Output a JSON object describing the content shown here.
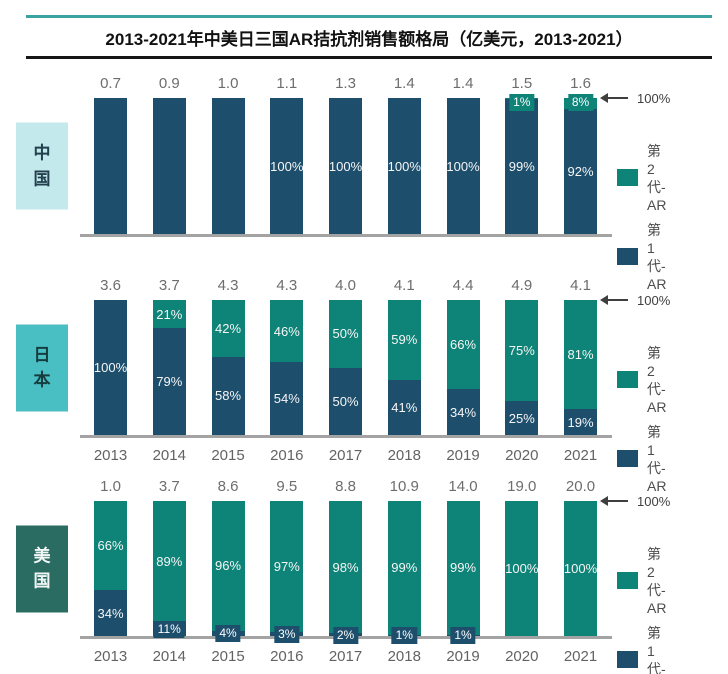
{
  "title": "2013-2021年中美日三国AR拮抗剂销售额格局（亿美元，2013-2021）",
  "legend": {
    "gen2_label": "第2代-AR",
    "gen1_label": "第1代-AR"
  },
  "annotations": {
    "axis_max_label": "100%"
  },
  "colors": {
    "gen2": "#0e8377",
    "gen1": "#1d4e6c",
    "region_china_bg": "#c4e9ec",
    "region_japan_bg": "#49bec3",
    "region_us_bg": "#2a6b62",
    "axis_line": "#a3a3a3",
    "title_rule_teal": "#38a3a1"
  },
  "chart_data": [
    {
      "type": "bar",
      "stacked": true,
      "region": "中国",
      "region_display": "中\n国",
      "categories": [
        "2013",
        "2014",
        "2015",
        "2016",
        "2017",
        "2018",
        "2019",
        "2020",
        "2021"
      ],
      "totals": [
        "0.7",
        "0.9",
        "1.0",
        "1.1",
        "1.3",
        "1.4",
        "1.4",
        "1.5",
        "1.6"
      ],
      "series": [
        {
          "name": "第2代-AR",
          "key": "gen2",
          "values": [
            0,
            0,
            0,
            0,
            0,
            0,
            0,
            1,
            8
          ],
          "labels": [
            "",
            "",
            "",
            "",
            "",
            "",
            "",
            "1%",
            "8%"
          ]
        },
        {
          "name": "第1代-AR",
          "key": "gen1",
          "values": [
            100,
            100,
            100,
            100,
            100,
            100,
            100,
            99,
            92
          ],
          "labels": [
            "",
            "",
            "",
            "100%",
            "100%",
            "100%",
            "100%",
            "99%",
            "92%"
          ]
        }
      ],
      "show_x_labels": false,
      "ylim": [
        0,
        100
      ],
      "legend_position": "right",
      "grid": false
    },
    {
      "type": "bar",
      "stacked": true,
      "region": "日本",
      "region_display": "日\n本",
      "categories": [
        "2013",
        "2014",
        "2015",
        "2016",
        "2017",
        "2018",
        "2019",
        "2020",
        "2021"
      ],
      "totals": [
        "3.6",
        "3.7",
        "4.3",
        "4.3",
        "4.0",
        "4.1",
        "4.4",
        "4.9",
        "4.1"
      ],
      "series": [
        {
          "name": "第2代-AR",
          "key": "gen2",
          "values": [
            0,
            21,
            42,
            46,
            50,
            59,
            66,
            75,
            81
          ],
          "labels": [
            "",
            "21%",
            "42%",
            "46%",
            "50%",
            "59%",
            "66%",
            "75%",
            "81%"
          ]
        },
        {
          "name": "第1代-AR",
          "key": "gen1",
          "values": [
            100,
            79,
            58,
            54,
            50,
            41,
            34,
            25,
            19
          ],
          "labels": [
            "100%",
            "79%",
            "58%",
            "54%",
            "50%",
            "41%",
            "34%",
            "25%",
            "19%"
          ]
        }
      ],
      "show_x_labels": true,
      "ylim": [
        0,
        100
      ],
      "legend_position": "right",
      "grid": false
    },
    {
      "type": "bar",
      "stacked": true,
      "region": "美国",
      "region_display": "美\n国",
      "categories": [
        "2013",
        "2014",
        "2015",
        "2016",
        "2017",
        "2018",
        "2019",
        "2020",
        "2021"
      ],
      "totals": [
        "1.0",
        "3.7",
        "8.6",
        "9.5",
        "8.8",
        "10.9",
        "14.0",
        "19.0",
        "20.0"
      ],
      "series": [
        {
          "name": "第2代-AR",
          "key": "gen2",
          "values": [
            66,
            89,
            96,
            97,
            98,
            99,
            99,
            100,
            100
          ],
          "labels": [
            "66%",
            "89%",
            "96%",
            "97%",
            "98%",
            "99%",
            "99%",
            "100%",
            "100%"
          ]
        },
        {
          "name": "第1代-AR",
          "key": "gen1",
          "values": [
            34,
            11,
            4,
            3,
            2,
            1,
            1,
            0,
            0
          ],
          "labels": [
            "34%",
            "11%",
            "4%",
            "3%",
            "2%",
            "1%",
            "1%",
            "",
            ""
          ]
        }
      ],
      "show_x_labels": true,
      "ylim": [
        0,
        100
      ],
      "legend_position": "right",
      "grid": false
    }
  ]
}
